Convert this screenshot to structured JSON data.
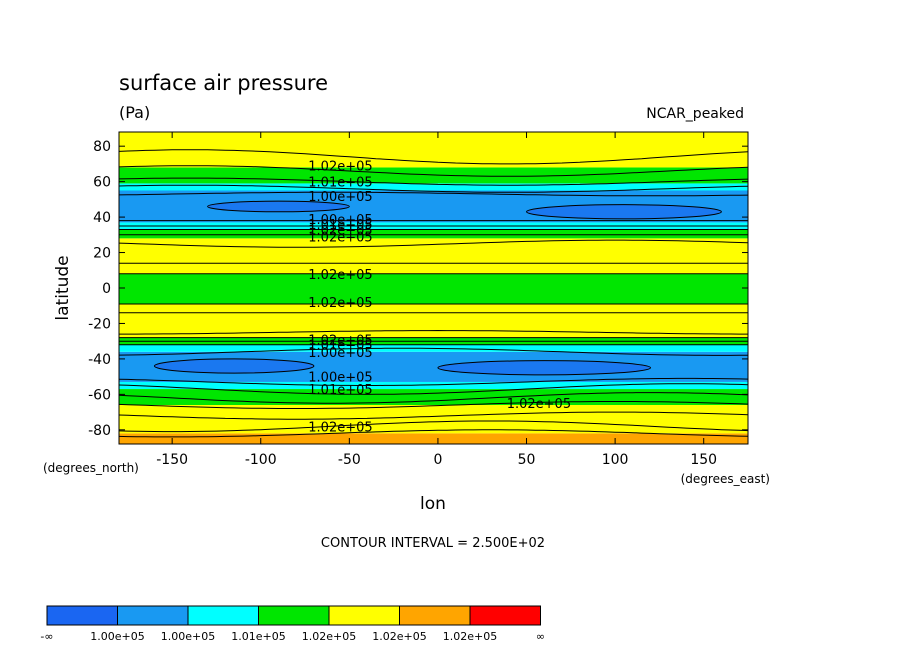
{
  "chart_data": {
    "type": "heatmap",
    "title": "surface air pressure",
    "units": "(Pa)",
    "dataset": "NCAR_peaked",
    "xlabel": "lon",
    "ylabel": "latitude",
    "x_units": "(degrees_east)",
    "y_units": "(degrees_north)",
    "xlim": [
      -180,
      175
    ],
    "ylim": [
      -88,
      88
    ],
    "x_ticks": [
      -150,
      -100,
      -50,
      0,
      50,
      100,
      150
    ],
    "y_ticks": [
      -80,
      -60,
      -40,
      -20,
      0,
      20,
      40,
      60,
      80
    ],
    "contour_interval": "CONTOUR INTERVAL = 2.500E+02",
    "legend": {
      "colors": [
        "#1a66f2",
        "#1999f2",
        "#00ffff",
        "#00e600",
        "#ffff00",
        "#ffa500",
        "#ff0000"
      ],
      "labels": [
        "-∞",
        "1.00e+05",
        "1.00e+05",
        "1.01e+05",
        "1.02e+05",
        "1.02e+05",
        "1.02e+05",
        "∞"
      ]
    },
    "bands": [
      {
        "lat": [
          -88,
          -82
        ],
        "color": "#ffa500"
      },
      {
        "lat": [
          -82,
          -66
        ],
        "color": "#ffff00"
      },
      {
        "lat": [
          -66,
          -57
        ],
        "color": "#00e600"
      },
      {
        "lat": [
          -57,
          -53
        ],
        "color": "#00ffff"
      },
      {
        "lat": [
          -53,
          -36
        ],
        "color": "#1999f2"
      },
      {
        "lat": [
          -36,
          -32
        ],
        "color": "#00ffff"
      },
      {
        "lat": [
          -32,
          -28
        ],
        "color": "#00e600"
      },
      {
        "lat": [
          -28,
          -9
        ],
        "color": "#ffff00"
      },
      {
        "lat": [
          -9,
          8
        ],
        "color": "#00e600"
      },
      {
        "lat": [
          8,
          28
        ],
        "color": "#ffff00"
      },
      {
        "lat": [
          28,
          33
        ],
        "color": "#00e600"
      },
      {
        "lat": [
          33,
          37
        ],
        "color": "#00ffff"
      },
      {
        "lat": [
          37,
          55
        ],
        "color": "#1999f2"
      },
      {
        "lat": [
          55,
          59
        ],
        "color": "#00ffff"
      },
      {
        "lat": [
          59,
          68
        ],
        "color": "#00e600"
      },
      {
        "lat": [
          68,
          88
        ],
        "color": "#ffff00"
      }
    ],
    "deep_lows": [
      {
        "lon": -90,
        "lat": 46,
        "dlon": 40,
        "dlat": 3
      },
      {
        "lon": 105,
        "lat": 43,
        "dlon": 55,
        "dlat": 4
      },
      {
        "lon": -115,
        "lat": -44,
        "dlon": 45,
        "dlat": 4
      },
      {
        "lon": 60,
        "lat": -45,
        "dlon": 60,
        "dlat": 4
      }
    ],
    "contour_lines": [
      {
        "lat": 74,
        "amp": -4,
        "phase": 40
      },
      {
        "lat": 66,
        "amp": -3,
        "phase": 40
      },
      {
        "lat": 60,
        "amp": -2,
        "phase": 40
      },
      {
        "lat": 56,
        "amp": -2,
        "phase": 40
      },
      {
        "lat": 53,
        "amp": 1,
        "phase": -60
      },
      {
        "lat": 38,
        "amp": 0,
        "phase": 0
      },
      {
        "lat": 35,
        "amp": 0,
        "phase": 0
      },
      {
        "lat": 33,
        "amp": 0,
        "phase": 0
      },
      {
        "lat": 30,
        "amp": 0,
        "phase": 0
      },
      {
        "lat": 25,
        "amp": 2,
        "phase": 100
      },
      {
        "lat": 14,
        "amp": 0,
        "phase": 0
      },
      {
        "lat": 8,
        "amp": 0,
        "phase": 0
      },
      {
        "lat": -9,
        "amp": 0,
        "phase": 0
      },
      {
        "lat": -14,
        "amp": 0,
        "phase": 0
      },
      {
        "lat": -25,
        "amp": 1,
        "phase": 0
      },
      {
        "lat": -28,
        "amp": 0,
        "phase": 0
      },
      {
        "lat": -30,
        "amp": 0,
        "phase": 0
      },
      {
        "lat": -32,
        "amp": 0,
        "phase": 0
      },
      {
        "lat": -36,
        "amp": -2,
        "phase": 160
      },
      {
        "lat": -53,
        "amp": 2,
        "phase": 140
      },
      {
        "lat": -57,
        "amp": 3,
        "phase": 140
      },
      {
        "lat": -62,
        "amp": 3,
        "phase": 120
      },
      {
        "lat": -66,
        "amp": 2,
        "phase": 100
      },
      {
        "lat": -72,
        "amp": 2,
        "phase": 100
      },
      {
        "lat": -78,
        "amp": 3,
        "phase": 30
      },
      {
        "lat": -82,
        "amp": 2,
        "phase": 30
      }
    ],
    "contour_labels": [
      {
        "text": "1.02e+05",
        "lon": -55,
        "lat": 69
      },
      {
        "text": "1.01e+05",
        "lon": -55,
        "lat": 60
      },
      {
        "text": "1.00e+05",
        "lon": -55,
        "lat": 52
      },
      {
        "text": "1.00e+05",
        "lon": -55,
        "lat": 39
      },
      {
        "text": "1.01e+05",
        "lon": -55,
        "lat": 36
      },
      {
        "text": "1.02e+05",
        "lon": -55,
        "lat": 33
      },
      {
        "text": "1.02e+05",
        "lon": -55,
        "lat": 29
      },
      {
        "text": "1.02e+05",
        "lon": -55,
        "lat": 8
      },
      {
        "text": "1.02e+05",
        "lon": -55,
        "lat": -8
      },
      {
        "text": "1.02e+05",
        "lon": -55,
        "lat": -29
      },
      {
        "text": "1.01e+05",
        "lon": -55,
        "lat": -32
      },
      {
        "text": "1.00e+05",
        "lon": -55,
        "lat": -36
      },
      {
        "text": "1.00e+05",
        "lon": -55,
        "lat": -50
      },
      {
        "text": "1.01e+05",
        "lon": -55,
        "lat": -57
      },
      {
        "text": "1.02e+05",
        "lon": 57,
        "lat": -65
      },
      {
        "text": "1.02e+05",
        "lon": -55,
        "lat": -78
      }
    ]
  }
}
